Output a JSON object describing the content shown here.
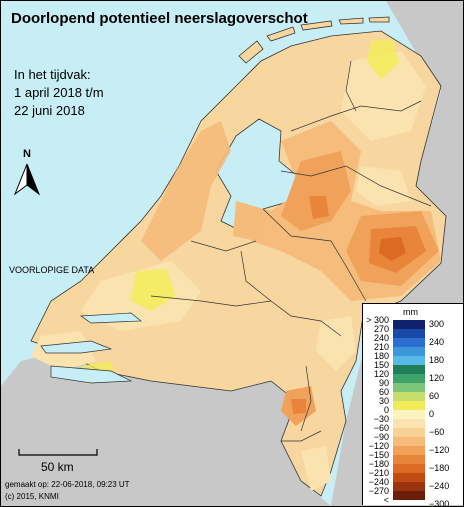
{
  "title": "Doorlopend potentieel neerslagoverschot",
  "period": {
    "line1": "In het tijdvak:",
    "line2": "1 april 2018 t/m",
    "line3": "22 juni 2018"
  },
  "north_label": "N",
  "prelim_label": "VOORLOPIGE DATA",
  "scale_label": "50 km",
  "made_label": "gemaakt op: 22-06-2018, 09:23 UT",
  "copyright": "(c) 2015, KNMI",
  "legend": {
    "unit": "mm",
    "left_labels": [
      "> 300",
      "270",
      "240",
      "210",
      "180",
      "150",
      "120",
      "90",
      "60",
      "30",
      "0",
      "−30",
      "−60",
      "−90",
      "−120",
      "−150",
      "−180",
      "−210",
      "−240",
      "−270",
      "< −300"
    ],
    "right_labels": [
      "300",
      "240",
      "180",
      "120",
      "60",
      "0",
      "−60",
      "−120",
      "−180",
      "−240",
      "−300"
    ],
    "colors": [
      "#10206a",
      "#1848a8",
      "#2a6fd0",
      "#3c96dc",
      "#58b8e6",
      "#1f7f5a",
      "#3da36a",
      "#7cc67a",
      "#c6dd6c",
      "#f2ec5a",
      "#fdf3c0",
      "#fbe3b0",
      "#f8d196",
      "#f4bb7a",
      "#f0a25a",
      "#e8853a",
      "#dc6a22",
      "#c24b14",
      "#9a320e",
      "#6a1e08"
    ]
  }
}
